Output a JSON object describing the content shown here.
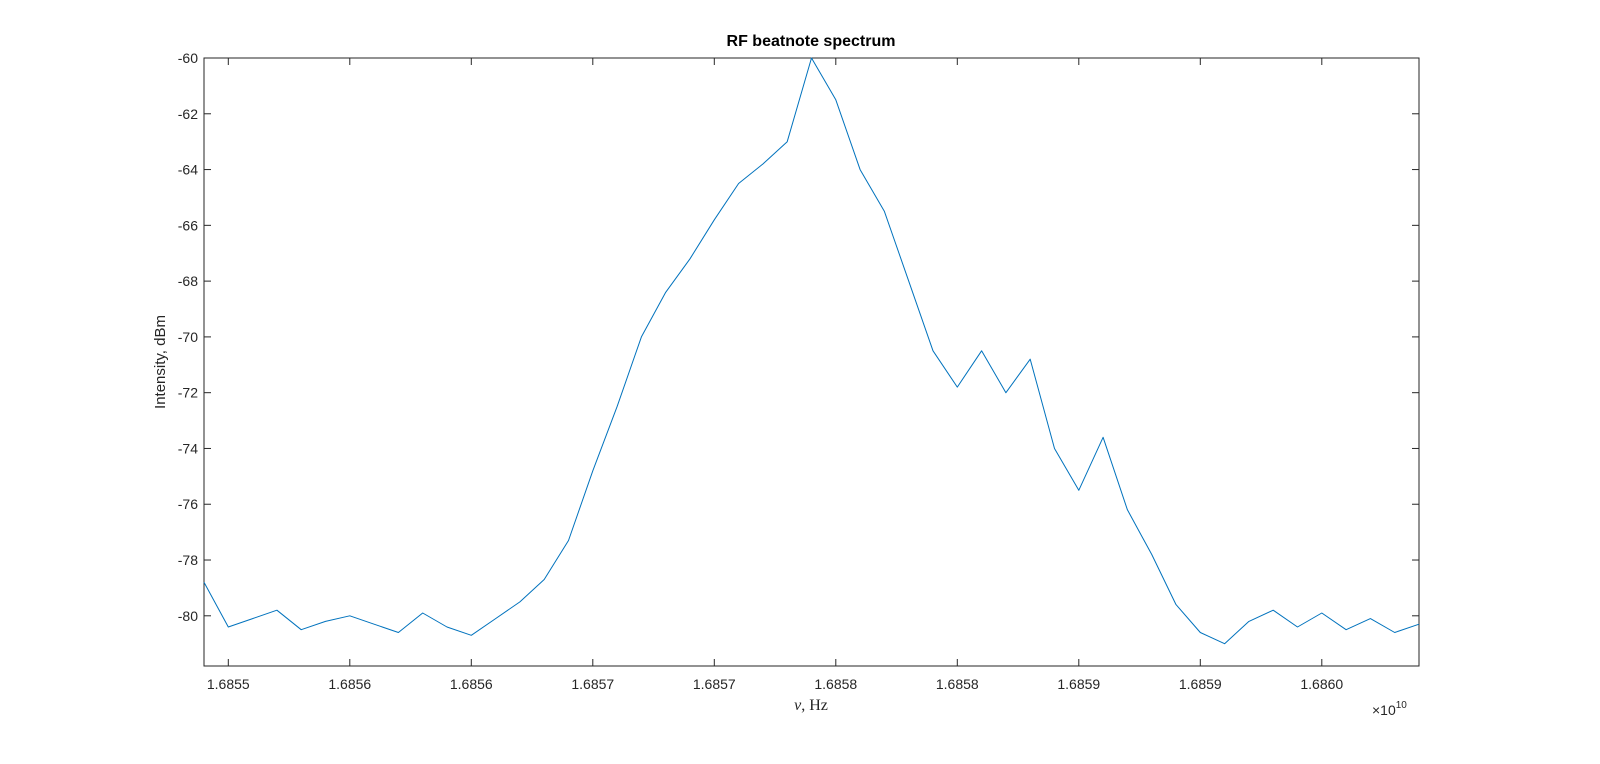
{
  "chart_data": {
    "type": "line",
    "title": "RF beatnote spectrum",
    "xlabel_symbol": "ν",
    "xlabel_unit": ", Hz",
    "ylabel": "Intensity, dBm",
    "x_exponent_base": "×10",
    "x_exponent": "10",
    "xlim": [
      1.68554,
      1.68604
    ],
    "ylim": [
      -81.8,
      -60
    ],
    "x_ticks": [
      1.68555,
      1.6856,
      1.68565,
      1.6857,
      1.68575,
      1.6858,
      1.68585,
      1.6859,
      1.68595,
      1.686
    ],
    "x_tick_labels": [
      "1.6855",
      "1.6856",
      "1.6856",
      "1.6857",
      "1.6857",
      "1.6858",
      "1.6858",
      "1.6859",
      "1.6859",
      "1.6860"
    ],
    "y_ticks": [
      -60,
      -62,
      -64,
      -66,
      -68,
      -70,
      -72,
      -74,
      -76,
      -78,
      -80
    ],
    "y_tick_labels": [
      "-60",
      "-62",
      "-64",
      "-66",
      "-68",
      "-70",
      "-72",
      "-74",
      "-76",
      "-78",
      "-80"
    ],
    "grid": false,
    "line_color": "#0072BD",
    "series": [
      {
        "x": [
          1.68554,
          1.68555,
          1.68556,
          1.68557,
          1.68558,
          1.68559,
          1.6856,
          1.68561,
          1.68562,
          1.68563,
          1.68564,
          1.68565,
          1.68566,
          1.68567,
          1.68568,
          1.68569,
          1.6857,
          1.68571,
          1.68572,
          1.68573,
          1.68574,
          1.68575,
          1.68576,
          1.68577,
          1.68578,
          1.68579,
          1.6858,
          1.68581,
          1.68582,
          1.68583,
          1.68584,
          1.68585,
          1.68586,
          1.68587,
          1.68588,
          1.68589,
          1.6859,
          1.68591,
          1.68592,
          1.68593,
          1.68594,
          1.68595,
          1.68596,
          1.68597,
          1.68598,
          1.68599,
          1.686,
          1.68601,
          1.68602,
          1.68603,
          1.68604
        ],
        "y": [
          -78.8,
          -80.4,
          -80.1,
          -79.8,
          -80.5,
          -80.2,
          -80.0,
          -80.3,
          -80.6,
          -79.9,
          -80.4,
          -80.7,
          -80.1,
          -79.5,
          -78.7,
          -77.3,
          -74.8,
          -72.5,
          -70.0,
          -68.4,
          -67.2,
          -65.8,
          -64.5,
          -63.8,
          -63.0,
          -60.0,
          -61.5,
          -64.0,
          -65.5,
          -68.0,
          -70.5,
          -71.8,
          -70.5,
          -72.0,
          -70.8,
          -74.0,
          -75.5,
          -73.6,
          -76.2,
          -77.8,
          -79.6,
          -80.6,
          -81.0,
          -80.2,
          -79.8,
          -80.4,
          -79.9,
          -80.5,
          -80.1,
          -80.6,
          -80.3
        ]
      }
    ]
  }
}
